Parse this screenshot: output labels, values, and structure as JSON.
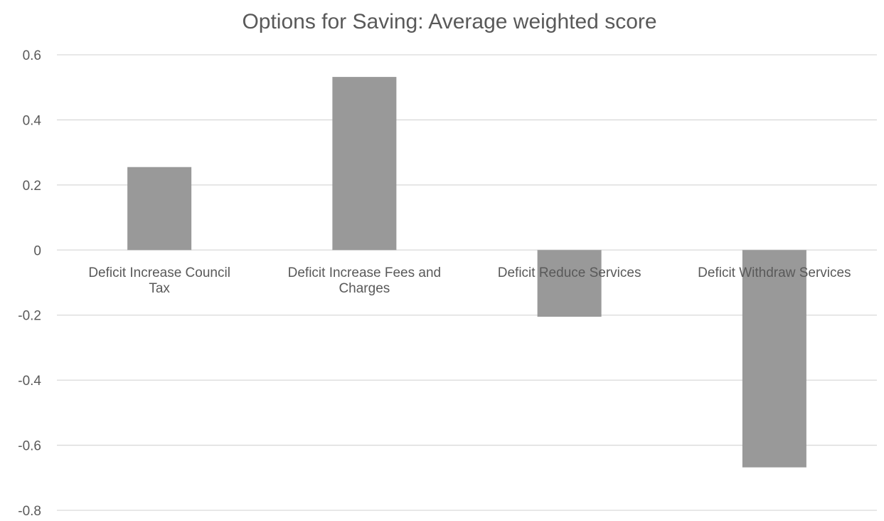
{
  "chart_data": {
    "type": "bar",
    "title": "Options for Saving: Average weighted score",
    "xlabel": "",
    "ylabel": "",
    "categories": [
      [
        "Deficit Increase Council",
        "Tax"
      ],
      [
        "Deficit Increase Fees and",
        "Charges"
      ],
      [
        "Deficit Reduce Services"
      ],
      [
        "Deficit Withdraw Services"
      ]
    ],
    "values": [
      0.255,
      0.532,
      -0.205,
      -0.668
    ],
    "ylim": [
      -0.8,
      0.6
    ],
    "yticks": [
      "0.6",
      "0.4",
      "0.2",
      "0",
      "-0.2",
      "-0.4",
      "-0.6",
      "-0.8"
    ],
    "ytick_values": [
      0.6,
      0.4,
      0.2,
      0,
      -0.2,
      -0.4,
      -0.6,
      -0.8
    ],
    "grid": true,
    "legend": "none",
    "bar_color": "#999999"
  }
}
